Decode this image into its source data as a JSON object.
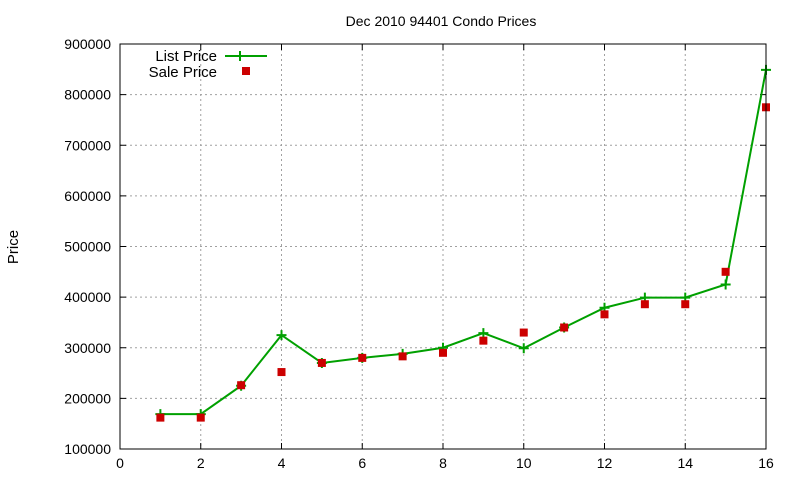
{
  "chart_data": {
    "type": "line",
    "title": "Dec 2010 94401 Condo Prices",
    "xlabel": "",
    "ylabel": "Price",
    "xlim": [
      0,
      16
    ],
    "ylim": [
      100000,
      900000
    ],
    "x_ticks": [
      "0",
      "2",
      "4",
      "6",
      "8",
      "10",
      "12",
      "14",
      "16"
    ],
    "y_ticks": [
      "100000",
      "200000",
      "300000",
      "400000",
      "500000",
      "600000",
      "700000",
      "800000",
      "900000"
    ],
    "grid": true,
    "legend_position": "top-left",
    "x": [
      1,
      2,
      3,
      4,
      5,
      6,
      7,
      8,
      9,
      10,
      11,
      12,
      13,
      14,
      15,
      16
    ],
    "series": [
      {
        "name": "List Price",
        "style": "linespoints",
        "marker": "plus",
        "color": "#00a000",
        "values": [
          169000,
          169000,
          225000,
          325000,
          270000,
          280000,
          288000,
          300000,
          329000,
          299000,
          340000,
          379000,
          399000,
          399000,
          425000,
          849000
        ]
      },
      {
        "name": "Sale Price",
        "style": "points",
        "marker": "square",
        "color": "#cc0000",
        "values": [
          162000,
          162000,
          226000,
          252000,
          270000,
          280000,
          283000,
          290000,
          314000,
          330000,
          340000,
          366000,
          386000,
          386000,
          450000,
          775000
        ]
      }
    ]
  }
}
